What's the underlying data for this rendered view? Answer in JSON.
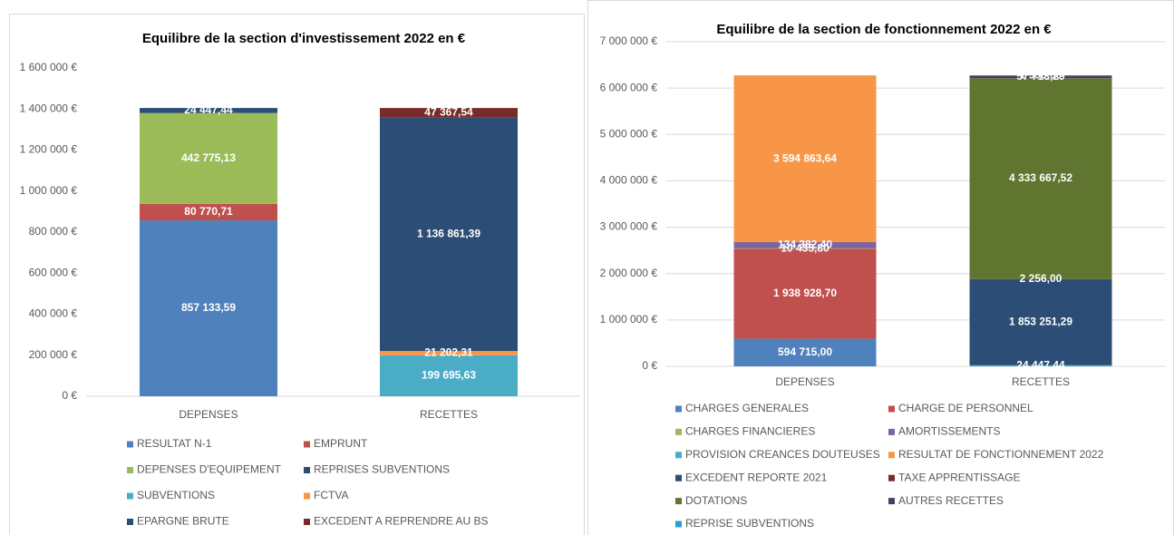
{
  "chart_data": [
    {
      "type": "bar",
      "stacked": true,
      "title": "Equilibre de la section d'investissement 2022 en €",
      "categories": [
        "DEPENSES",
        "RECETTES"
      ],
      "ylim": [
        0,
        1600000
      ],
      "yticks": [
        {
          "value": 0,
          "label": "0 €"
        },
        {
          "value": 200000,
          "label": "200 000 €"
        },
        {
          "value": 400000,
          "label": "400 000 €"
        },
        {
          "value": 600000,
          "label": "600 000 €"
        },
        {
          "value": 800000,
          "label": "800 000 €"
        },
        {
          "value": 1000000,
          "label": "1 000 000 €"
        },
        {
          "value": 1200000,
          "label": "1 200 000 €"
        },
        {
          "value": 1400000,
          "label": "1 400 000 €"
        },
        {
          "value": 1600000,
          "label": "1 600 000 €"
        }
      ],
      "grid": false,
      "legend": "bottom",
      "series": [
        {
          "name": "RESULTAT N-1",
          "color": "#4f81bd",
          "values": [
            857133.59,
            null
          ],
          "value_labels": [
            "857 133,59",
            null
          ]
        },
        {
          "name": "EMPRUNT",
          "color": "#c0504d",
          "values": [
            80770.71,
            null
          ],
          "value_labels": [
            "80 770,71",
            null
          ]
        },
        {
          "name": "DEPENSES D'EQUIPEMENT",
          "color": "#9bbb59",
          "values": [
            442775.13,
            null
          ],
          "value_labels": [
            "442 775,13",
            null
          ]
        },
        {
          "name": "REPRISES SUBVENTIONS",
          "color": "#2c4d75",
          "values": [
            24447.44,
            null
          ],
          "value_labels": [
            "24 447,44",
            null
          ]
        },
        {
          "name": "SUBVENTIONS",
          "color": "#4bacc6",
          "values": [
            null,
            199695.63
          ],
          "value_labels": [
            null,
            "199 695,63"
          ]
        },
        {
          "name": "FCTVA",
          "color": "#f79646",
          "values": [
            null,
            21202.31
          ],
          "value_labels": [
            null,
            "21 202,31"
          ]
        },
        {
          "name": "EPARGNE BRUTE",
          "color": "#2c4d75",
          "values": [
            null,
            1136861.39
          ],
          "value_labels": [
            null,
            "1 136 861,39"
          ]
        },
        {
          "name": "EXCEDENT A REPRENDRE AU BS",
          "color": "#772c2a",
          "values": [
            null,
            47367.54
          ],
          "value_labels": [
            null,
            "47 367,54"
          ]
        }
      ]
    },
    {
      "type": "bar",
      "stacked": true,
      "title": "Equilibre de la section de fonctionnement 2022 en €",
      "categories": [
        "DEPENSES",
        "RECETTES"
      ],
      "ylim": [
        0,
        7000000
      ],
      "yticks": [
        {
          "value": 0,
          "label": "0 €"
        },
        {
          "value": 1000000,
          "label": "1 000 000 €"
        },
        {
          "value": 2000000,
          "label": "2 000 000 €"
        },
        {
          "value": 3000000,
          "label": "3 000 000 €"
        },
        {
          "value": 4000000,
          "label": "4 000 000 €"
        },
        {
          "value": 5000000,
          "label": "5 000 000 €"
        },
        {
          "value": 6000000,
          "label": "6 000 000 €"
        },
        {
          "value": 7000000,
          "label": "7 000 000 €"
        }
      ],
      "grid": true,
      "legend": "bottom",
      "series": [
        {
          "name": "CHARGES GENERALES",
          "color": "#4f81bd",
          "values": [
            594715.0,
            null
          ],
          "value_labels": [
            "594 715,00",
            null
          ]
        },
        {
          "name": "CHARGE DE PERSONNEL",
          "color": "#c0504d",
          "values": [
            1938928.7,
            null
          ],
          "value_labels": [
            "1 938 928,70",
            null
          ]
        },
        {
          "name": "CHARGES FINANCIERES",
          "color": "#9bbb59",
          "values": [
            10435.8,
            null
          ],
          "value_labels": [
            "10 435,80",
            null
          ]
        },
        {
          "name": "AMORTISSEMENTS",
          "color": "#8064a2",
          "values": [
            134382.4,
            null
          ],
          "value_labels": [
            "134 382,40",
            null
          ]
        },
        {
          "name": "PROVISION CREANCES DOUTEUSES",
          "color": "#4bacc6",
          "values": [
            null,
            24447.44
          ],
          "value_labels": [
            null,
            "24 447,44"
          ]
        },
        {
          "name": "RESULTAT DE FONCTIONNEMENT 2022",
          "color": "#f79646",
          "values": [
            3594863.64,
            null
          ],
          "value_labels": [
            "3 594 863,64",
            null
          ]
        },
        {
          "name": "EXCEDENT REPORTE 2021",
          "color": "#2c4d75",
          "values": [
            null,
            1853251.29
          ],
          "value_labels": [
            null,
            "1 853 251,29"
          ]
        },
        {
          "name": "TAXE APPRENTISSAGE",
          "color": "#772c2a",
          "values": [
            null,
            2256.0
          ],
          "value_labels": [
            null,
            "2 256,00"
          ]
        },
        {
          "name": "DOTATIONS",
          "color": "#5f7530",
          "values": [
            null,
            4333667.52
          ],
          "value_labels": [
            null,
            "4 333 667,52"
          ]
        },
        {
          "name": "AUTRES RECETTES",
          "color": "#4d3b62",
          "values": [
            null,
            57713.29
          ],
          "value_labels": [
            null,
            "57 713,29"
          ]
        },
        {
          "name": "REPRISE SUBVENTIONS",
          "color": "#2a9fd6",
          "values": [
            null,
            1990.0
          ],
          "value_labels": [
            null,
            "1 990,00"
          ]
        }
      ]
    }
  ]
}
